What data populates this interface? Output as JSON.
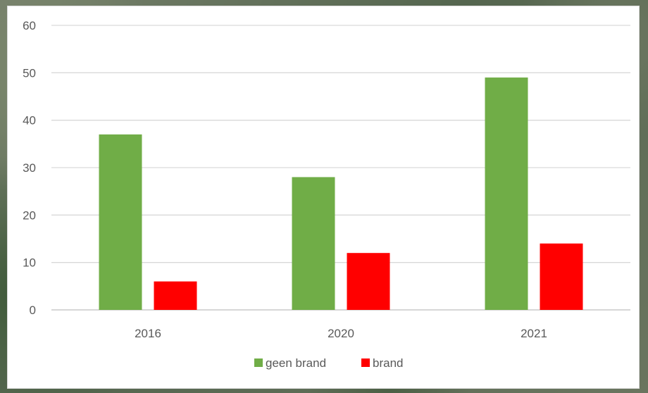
{
  "chart_data": {
    "type": "bar",
    "categories": [
      "2016",
      "2020",
      "2021"
    ],
    "series": [
      {
        "name": "geen brand",
        "values": [
          37,
          28,
          49
        ],
        "color": "#70ad47"
      },
      {
        "name": "brand",
        "values": [
          6,
          12,
          14
        ],
        "color": "#ff0000"
      }
    ],
    "ylim": [
      0,
      60
    ],
    "yticks": [
      "0",
      "10",
      "20",
      "30",
      "40",
      "50",
      "60"
    ],
    "grid": true,
    "legend_position": "bottom",
    "title": "",
    "xlabel": "",
    "ylabel": ""
  }
}
